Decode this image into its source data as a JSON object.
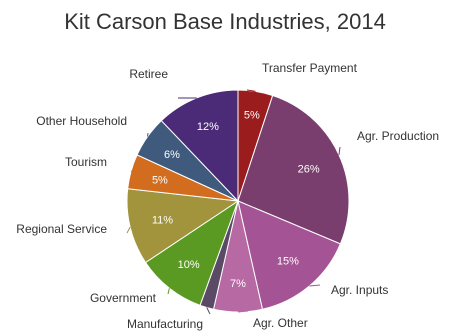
{
  "chart_data": {
    "type": "pie",
    "title": "Kit Carson Base Industries, 2014",
    "slices": [
      {
        "label": "Transfer Payment",
        "value": 5,
        "pct_label": "5%",
        "color": "#9b1c1c"
      },
      {
        "label": "Agr. Production",
        "value": 26,
        "pct_label": "26%",
        "color": "#7a3e6e"
      },
      {
        "label": "Agr. Inputs",
        "value": 15,
        "pct_label": "15%",
        "color": "#a45394"
      },
      {
        "label": "Agr. Other",
        "value": 7,
        "pct_label": "7%",
        "color": "#b669a3"
      },
      {
        "label": "Manufacturing",
        "value": 2,
        "pct_label": "",
        "color": "#5b4a66"
      },
      {
        "label": "Government",
        "value": 10,
        "pct_label": "10%",
        "color": "#5a9a22"
      },
      {
        "label": "Regional Service",
        "value": 11,
        "pct_label": "11%",
        "color": "#a2933d"
      },
      {
        "label": "Tourism",
        "value": 5,
        "pct_label": "5%",
        "color": "#d26c1e"
      },
      {
        "label": "Other Household",
        "value": 6,
        "pct_label": "6%",
        "color": "#3f5a7c"
      },
      {
        "label": "Retiree",
        "value": 12,
        "pct_label": "12%",
        "color": "#4b2b78"
      }
    ]
  }
}
